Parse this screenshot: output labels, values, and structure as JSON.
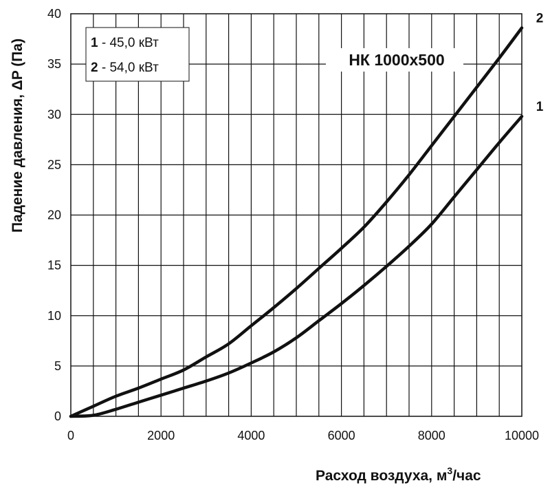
{
  "chart_data": {
    "type": "line",
    "title": "НК 1000х500",
    "xlabel": "Расход воздуха, м",
    "xlabel_sup": "3",
    "xlabel_suffix": "/час",
    "ylabel": "Падение давления, ΔP (Па)",
    "xlim": [
      0,
      10000
    ],
    "ylim": [
      0,
      40
    ],
    "xticks": [
      0,
      2000,
      4000,
      6000,
      8000,
      10000
    ],
    "yticks": [
      0,
      5,
      10,
      15,
      20,
      25,
      30,
      35,
      40
    ],
    "x_minor_step": 500,
    "grid": true,
    "legend": {
      "placement": "top-left",
      "items": [
        {
          "num": "1",
          "text": " - 45,0  кВт"
        },
        {
          "num": "2",
          "text": " - 54,0  кВт"
        }
      ]
    },
    "series": [
      {
        "name": "1",
        "x": [
          0,
          500,
          1000,
          1500,
          2000,
          2500,
          3000,
          3500,
          4000,
          4500,
          5000,
          5500,
          6000,
          6500,
          7000,
          7500,
          8000,
          8500,
          9000,
          9500,
          10000
        ],
        "y": [
          0,
          0.1,
          0.7,
          1.4,
          2.1,
          2.8,
          3.5,
          4.3,
          5.3,
          6.4,
          7.8,
          9.5,
          11.2,
          13.0,
          14.9,
          16.9,
          19.1,
          21.8,
          24.5,
          27.2,
          29.8
        ]
      },
      {
        "name": "2",
        "x": [
          0,
          500,
          1000,
          1500,
          2000,
          2500,
          3000,
          3500,
          4000,
          4500,
          5000,
          5500,
          6000,
          6500,
          7000,
          7500,
          8000,
          8500,
          9000,
          9500,
          10000
        ],
        "y": [
          0,
          1.0,
          2.0,
          2.8,
          3.7,
          4.6,
          5.9,
          7.2,
          9.0,
          10.8,
          12.7,
          14.7,
          16.7,
          18.8,
          21.3,
          24.0,
          26.9,
          29.8,
          32.7,
          35.6,
          38.6
        ]
      }
    ]
  }
}
